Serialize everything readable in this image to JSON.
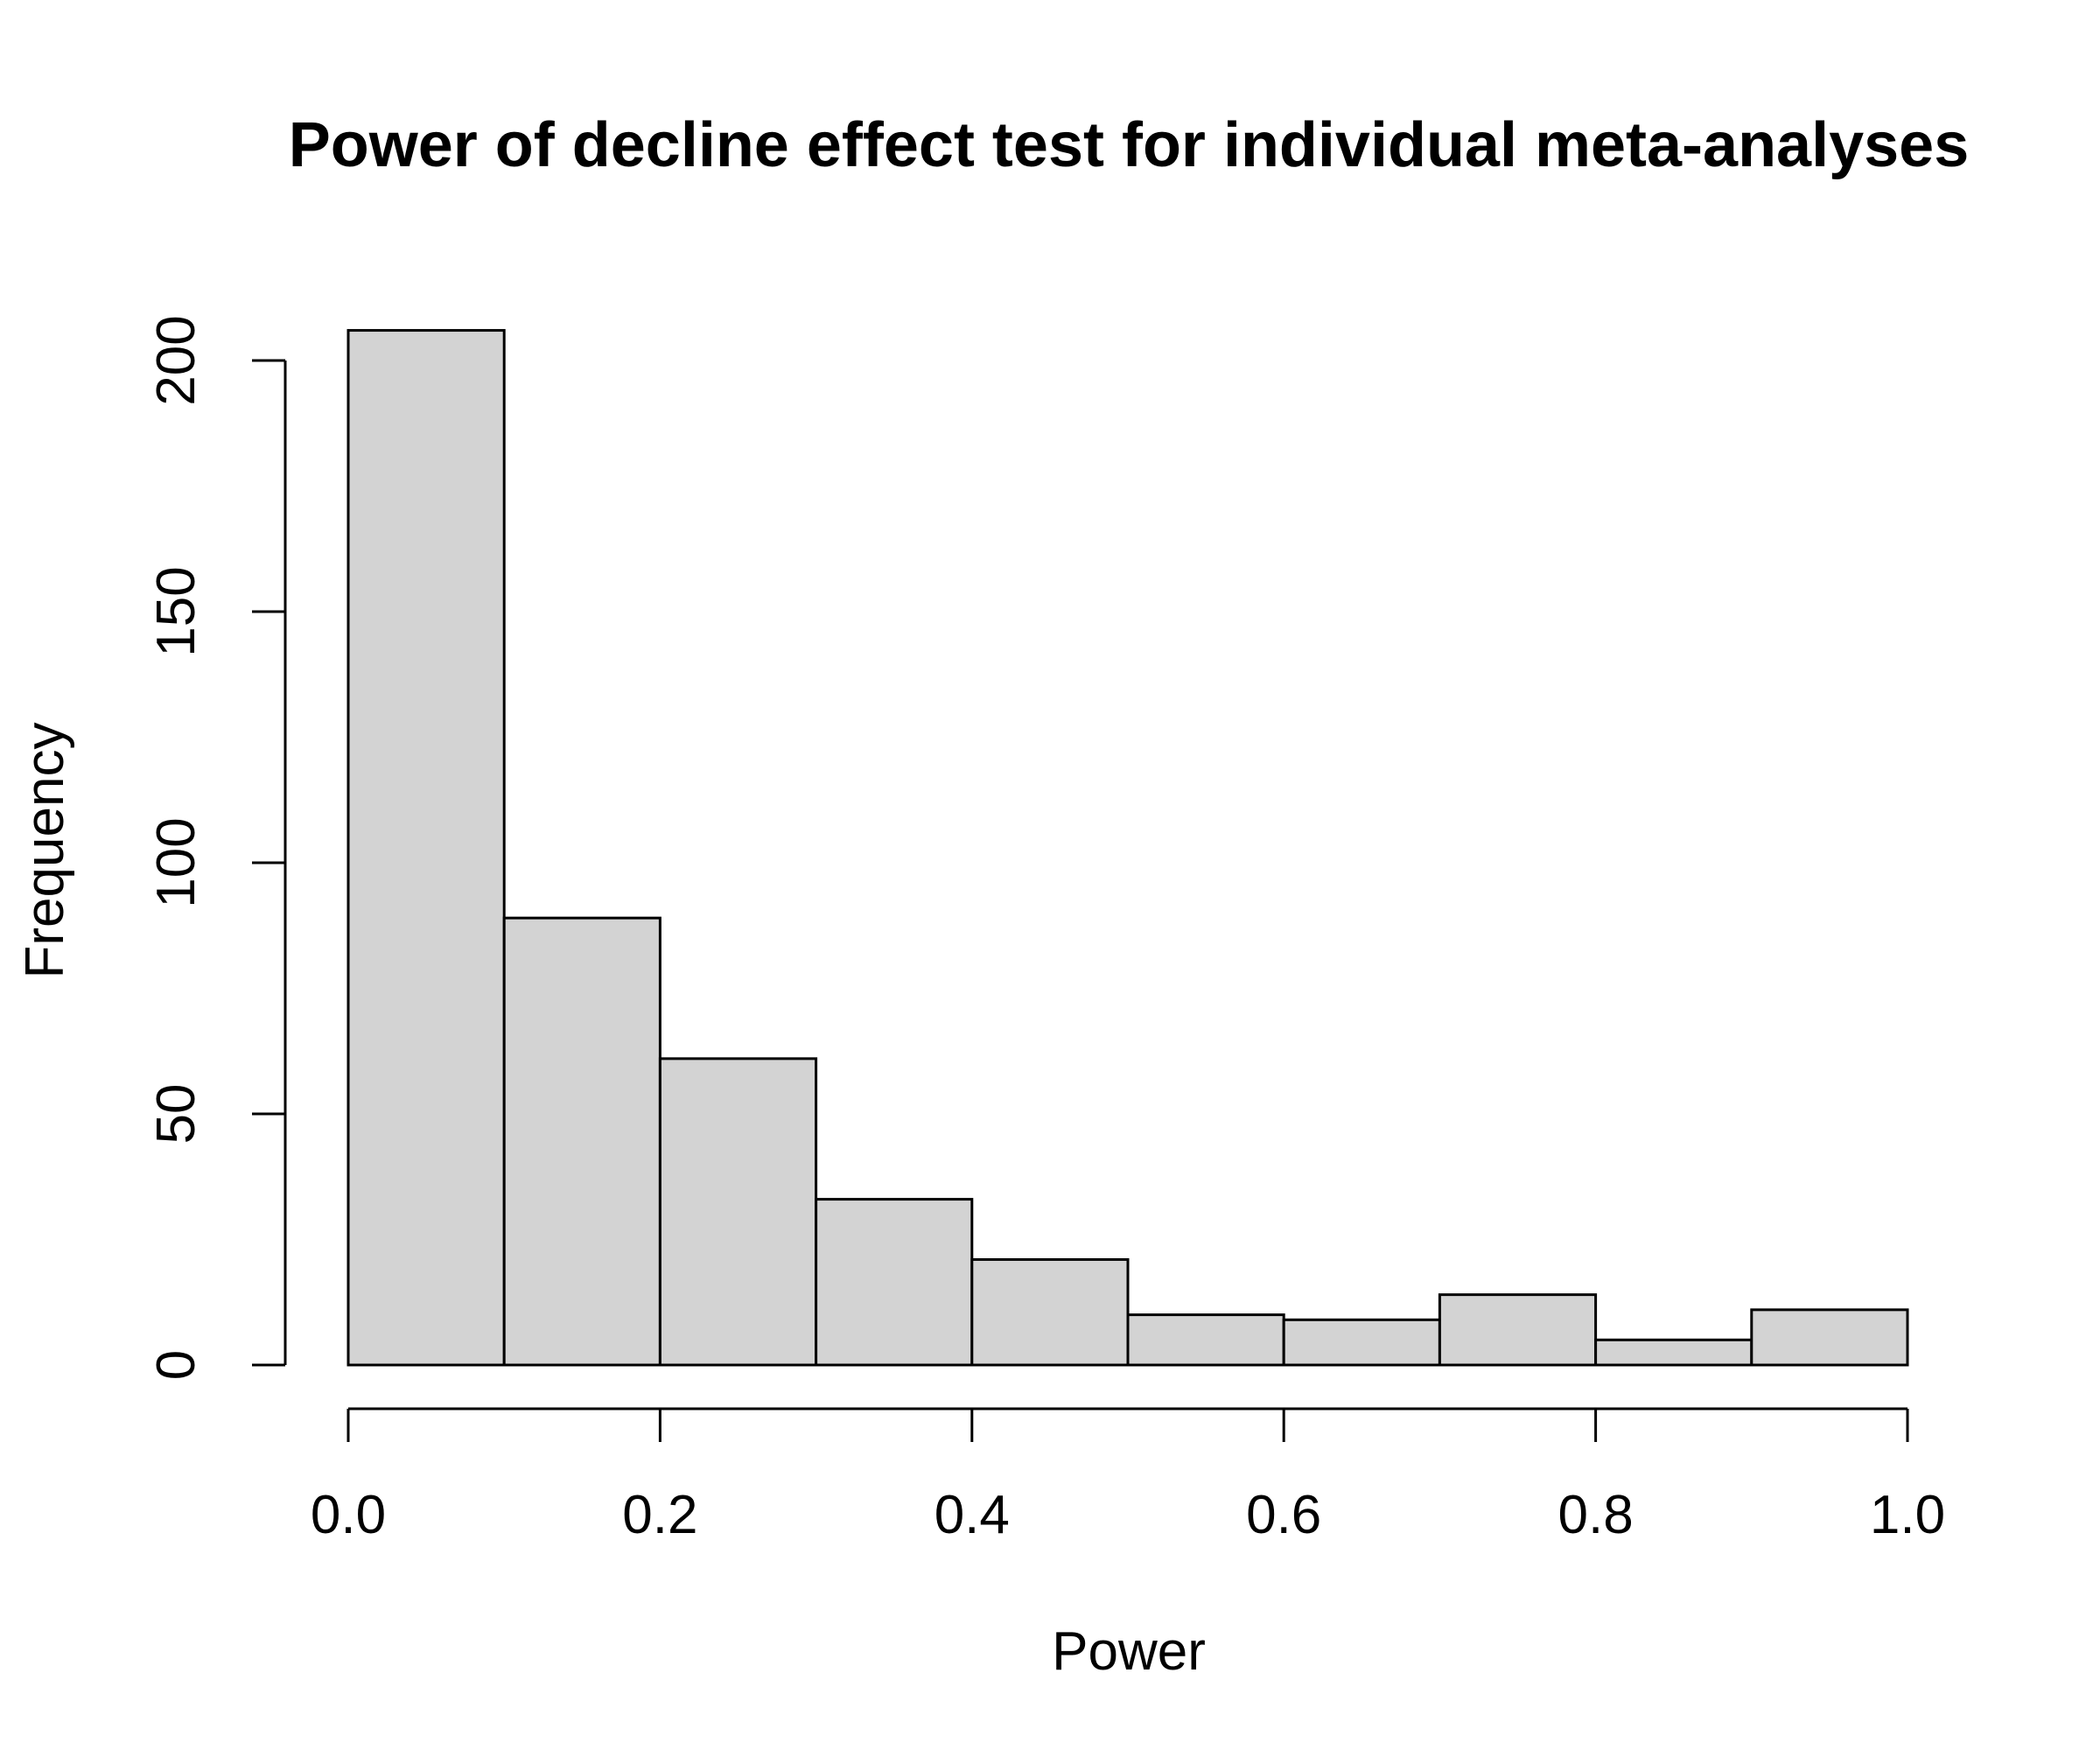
{
  "chart_data": {
    "type": "bar",
    "subtype": "histogram",
    "title": "Power of decline effect test for individual meta-analyses",
    "xlabel": "Power",
    "ylabel": "Frequency",
    "bins": [
      {
        "start": 0.0,
        "end": 0.1,
        "count": 206
      },
      {
        "start": 0.1,
        "end": 0.2,
        "count": 89
      },
      {
        "start": 0.2,
        "end": 0.3,
        "count": 61
      },
      {
        "start": 0.3,
        "end": 0.4,
        "count": 33
      },
      {
        "start": 0.4,
        "end": 0.5,
        "count": 21
      },
      {
        "start": 0.5,
        "end": 0.6,
        "count": 10
      },
      {
        "start": 0.6,
        "end": 0.7,
        "count": 9
      },
      {
        "start": 0.7,
        "end": 0.8,
        "count": 14
      },
      {
        "start": 0.8,
        "end": 0.9,
        "count": 5
      },
      {
        "start": 0.9,
        "end": 1.0,
        "count": 11
      }
    ],
    "xlim": [
      0.0,
      1.0
    ],
    "ylim": [
      0,
      206
    ],
    "x_ticks": [
      0.0,
      0.2,
      0.4,
      0.6,
      0.8,
      1.0
    ],
    "x_tick_labels": [
      "0.0",
      "0.2",
      "0.4",
      "0.6",
      "0.8",
      "1.0"
    ],
    "y_ticks": [
      0,
      50,
      100,
      150,
      200
    ],
    "y_tick_labels": [
      "0",
      "50",
      "100",
      "150",
      "200"
    ],
    "bar_color": "#d3d3d3",
    "edge_color": "#000000",
    "grid": false
  }
}
